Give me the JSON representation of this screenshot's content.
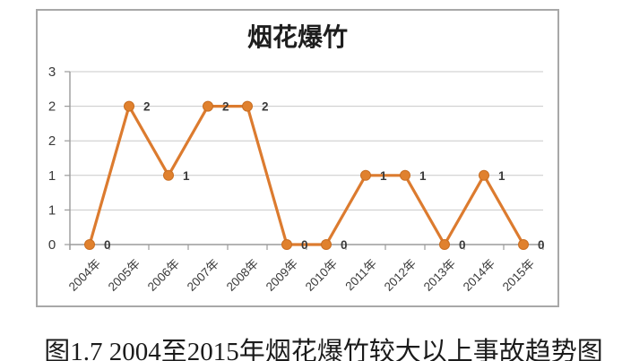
{
  "figure": {
    "caption": "图1.7 2004至2015年烟花爆竹较大以上事故趋势图"
  },
  "chart_data": {
    "type": "line",
    "title": "烟花爆竹",
    "categories": [
      "2004年",
      "2005年",
      "2006年",
      "2007年",
      "2008年",
      "2009年",
      "2010年",
      "2011年",
      "2012年",
      "2013年",
      "2014年",
      "2015年"
    ],
    "series": [
      {
        "name": "烟花爆竹",
        "values": [
          0,
          2,
          1,
          2,
          2,
          0,
          0,
          1,
          1,
          0,
          1,
          0
        ]
      }
    ],
    "data_labels_shown": true,
    "legend": "none",
    "grid": true,
    "y_axis": {
      "range": [
        0,
        2.5
      ],
      "tick_interval": 0.5,
      "tick_labels_top_to_bottom": [
        "3",
        "2",
        "2",
        "1",
        "1",
        "0"
      ]
    },
    "x_axis": {
      "label_rotation_deg": -45
    },
    "colors": {
      "line": "#DC7B2F",
      "marker": "#E0812E",
      "marker_edge": "#C96E22",
      "grid": "#C9C9C9",
      "axis": "#9B9B9B",
      "label": "#3A3A3A",
      "border": "#A8A8A8"
    }
  }
}
